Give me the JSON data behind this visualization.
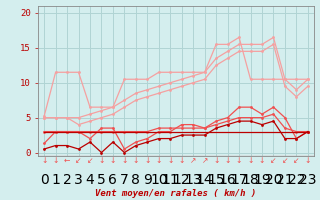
{
  "x": [
    0,
    1,
    2,
    3,
    4,
    5,
    6,
    7,
    8,
    9,
    10,
    11,
    12,
    13,
    14,
    15,
    16,
    17,
    18,
    19,
    20,
    21,
    22,
    23
  ],
  "line1": [
    5.2,
    11.5,
    11.5,
    11.5,
    6.5,
    6.5,
    6.5,
    10.5,
    10.5,
    10.5,
    11.5,
    11.5,
    11.5,
    11.5,
    11.5,
    15.5,
    15.5,
    16.5,
    10.5,
    10.5,
    10.5,
    10.5,
    10.5,
    10.5
  ],
  "line2": [
    5.0,
    5.0,
    5.0,
    5.0,
    5.5,
    6.0,
    6.5,
    7.5,
    8.5,
    9.0,
    9.5,
    10.0,
    10.5,
    11.0,
    11.5,
    13.5,
    14.5,
    15.5,
    15.5,
    15.5,
    16.5,
    10.5,
    9.0,
    10.5
  ],
  "line3": [
    5.0,
    5.0,
    5.0,
    4.0,
    4.5,
    5.0,
    5.5,
    6.5,
    7.5,
    8.0,
    8.5,
    9.0,
    9.5,
    10.0,
    10.5,
    12.5,
    13.5,
    14.5,
    14.5,
    14.5,
    15.5,
    9.5,
    8.0,
    9.5
  ],
  "line4": [
    1.3,
    3.0,
    3.0,
    3.0,
    2.0,
    3.5,
    3.5,
    0.5,
    1.5,
    2.0,
    3.0,
    3.0,
    4.0,
    4.0,
    3.5,
    4.5,
    5.0,
    6.5,
    6.5,
    5.5,
    6.5,
    5.0,
    2.0,
    3.0
  ],
  "line5": [
    3.0,
    3.0,
    3.0,
    3.0,
    3.0,
    3.0,
    3.0,
    3.0,
    3.0,
    3.0,
    3.5,
    3.5,
    3.5,
    3.5,
    3.5,
    4.0,
    4.5,
    5.0,
    5.0,
    5.0,
    5.5,
    3.5,
    3.0,
    3.0
  ],
  "line6": [
    0.5,
    1.0,
    1.0,
    0.5,
    1.5,
    0.0,
    1.5,
    0.0,
    1.0,
    1.5,
    2.0,
    2.0,
    2.5,
    2.5,
    2.5,
    3.5,
    4.0,
    4.5,
    4.5,
    4.0,
    4.5,
    2.0,
    2.0,
    3.0
  ],
  "line7": [
    3.0,
    3.0,
    3.0,
    3.0,
    3.0,
    3.0,
    3.0,
    3.0,
    3.0,
    3.0,
    3.0,
    3.0,
    3.0,
    3.0,
    3.0,
    3.0,
    3.0,
    3.0,
    3.0,
    3.0,
    3.0,
    3.0,
    3.0,
    3.0
  ],
  "color_light": "#f5a0a0",
  "color_medium": "#f05050",
  "color_dark": "#bb0000",
  "bg_color": "#d4eeee",
  "grid_color": "#b0d4d4",
  "xlabel": "Vent moyen/en rafales ( km/h )",
  "ylabel_ticks": [
    0,
    5,
    10,
    15,
    20
  ],
  "xlim": [
    -0.5,
    23.5
  ],
  "ylim": [
    -0.5,
    21
  ],
  "arrows": [
    "↓",
    "↓",
    "←",
    "↙",
    "↙",
    "↓",
    "↓",
    "↓",
    "↓",
    "↓",
    "↓",
    "↓",
    "↓",
    "↗",
    "↗",
    "↓",
    "↓",
    "↓",
    "↓",
    "↓",
    "↙",
    "↙",
    "↙",
    "↓"
  ]
}
